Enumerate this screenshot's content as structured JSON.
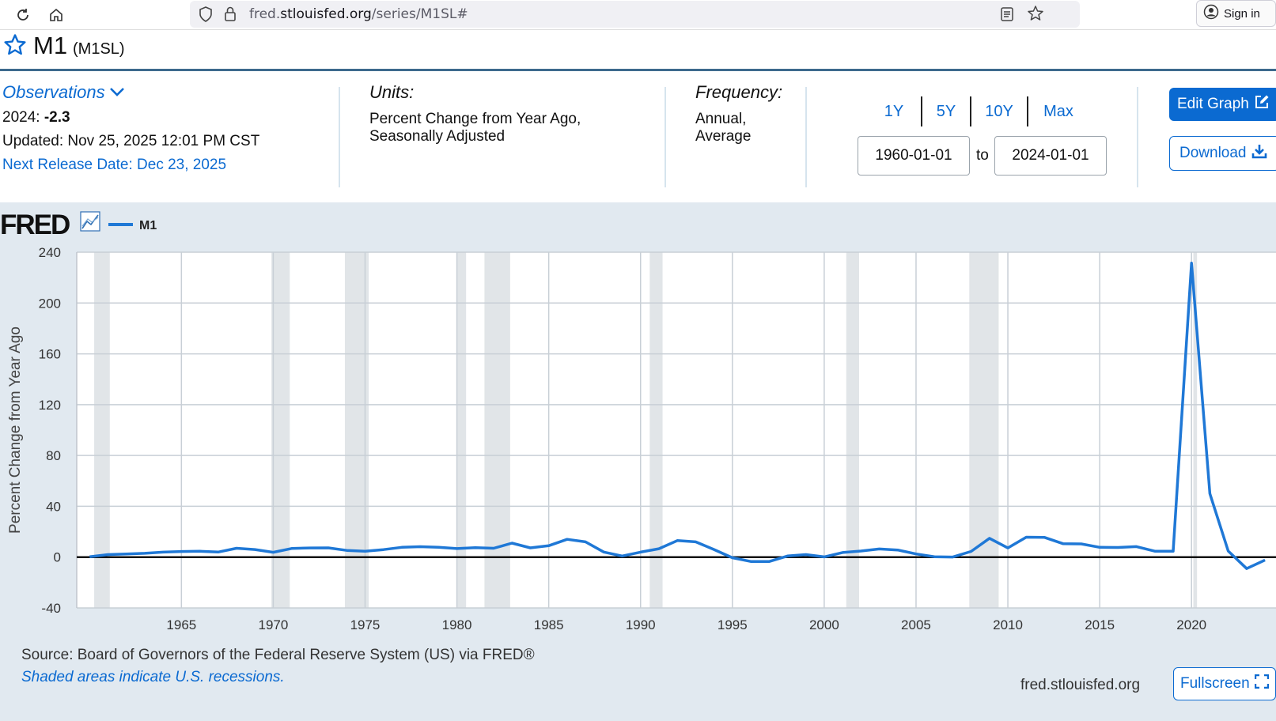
{
  "browser": {
    "url_prefix": "fred.",
    "url_domain": "stlouisfed.org",
    "url_path": "/series/M1SL#",
    "signin_label": "Sign in"
  },
  "series": {
    "title": "M1",
    "code": "(M1SL)"
  },
  "observations": {
    "label": "Observations",
    "year": "2024:",
    "value": "-2.3",
    "updated": "Updated: Nov 25, 2025 12:01 PM CST",
    "next_release": "Next Release Date: Dec 23, 2025"
  },
  "units": {
    "label": "Units:",
    "line1": "Percent Change from Year Ago,",
    "line2": "Seasonally Adjusted"
  },
  "frequency": {
    "label": "Frequency:",
    "line1": "Annual,",
    "line2": "Average"
  },
  "range": {
    "buttons": [
      "1Y",
      "5Y",
      "10Y",
      "Max"
    ],
    "start": "1960-01-01",
    "to_label": "to",
    "end": "2024-01-01"
  },
  "actions": {
    "edit_label": "Edit Graph",
    "download_label": "Download",
    "fullscreen_label": "Fullscreen"
  },
  "footer": {
    "source": "Source: Board of Governors of the Federal Reserve System (US) via FRED®",
    "shaded_note": "Shaded areas indicate U.S. recessions.",
    "site": "fred.stlouisfed.org"
  },
  "colors": {
    "accent": "#0b6ad1",
    "line": "#1f78d6",
    "recession": "#e1e5e8",
    "panel": "#e1e9f0"
  },
  "chart_data": {
    "type": "line",
    "logo": "FRED",
    "legend": [
      "M1"
    ],
    "ylabel": "Percent Change from Year Ago",
    "xlabel": "",
    "ylim": [
      -40,
      240
    ],
    "yticks": [
      -40,
      0,
      40,
      80,
      120,
      160,
      200,
      240
    ],
    "xlim": [
      1959.3,
      2024.6
    ],
    "xticks": [
      1965,
      1970,
      1975,
      1980,
      1985,
      1990,
      1995,
      2000,
      2005,
      2010,
      2015,
      2020
    ],
    "grid": true,
    "recessions": [
      [
        1960.25,
        1961.1
      ],
      [
        1969.9,
        1970.9
      ],
      [
        1973.9,
        1975.2
      ],
      [
        1980.0,
        1980.5
      ],
      [
        1981.5,
        1982.9
      ],
      [
        1990.5,
        1991.2
      ],
      [
        2001.2,
        2001.9
      ],
      [
        2007.9,
        2009.5
      ],
      [
        2020.1,
        2020.3
      ]
    ],
    "series": [
      {
        "name": "M1",
        "x": [
          1960,
          1961,
          1962,
          1963,
          1964,
          1965,
          1966,
          1967,
          1968,
          1969,
          1970,
          1971,
          1972,
          1973,
          1974,
          1975,
          1976,
          1977,
          1978,
          1979,
          1980,
          1981,
          1982,
          1983,
          1984,
          1985,
          1986,
          1987,
          1988,
          1989,
          1990,
          1991,
          1992,
          1993,
          1994,
          1995,
          1996,
          1997,
          1998,
          1999,
          2000,
          2001,
          2002,
          2003,
          2004,
          2005,
          2006,
          2007,
          2008,
          2009,
          2010,
          2011,
          2012,
          2013,
          2014,
          2015,
          2016,
          2017,
          2018,
          2019,
          2020,
          2021,
          2022,
          2023,
          2024
        ],
        "values": [
          0.3,
          2.0,
          2.5,
          3.0,
          3.9,
          4.4,
          4.6,
          4.0,
          7.0,
          6.0,
          3.8,
          6.8,
          7.2,
          7.3,
          5.3,
          4.7,
          5.9,
          7.7,
          8.2,
          7.8,
          6.7,
          7.5,
          7.0,
          11.0,
          7.3,
          9.0,
          14.0,
          12.0,
          4.0,
          0.9,
          3.9,
          6.6,
          13.0,
          12.0,
          6.0,
          -0.5,
          -3.4,
          -3.5,
          0.9,
          2.0,
          0.2,
          3.6,
          4.8,
          6.4,
          5.6,
          2.5,
          0.3,
          0.1,
          4.5,
          14.8,
          7.2,
          15.7,
          15.5,
          10.6,
          10.4,
          7.7,
          7.6,
          8.3,
          4.7,
          4.6,
          231.4,
          50.0,
          4.8,
          -9.0,
          -2.3
        ]
      }
    ]
  }
}
